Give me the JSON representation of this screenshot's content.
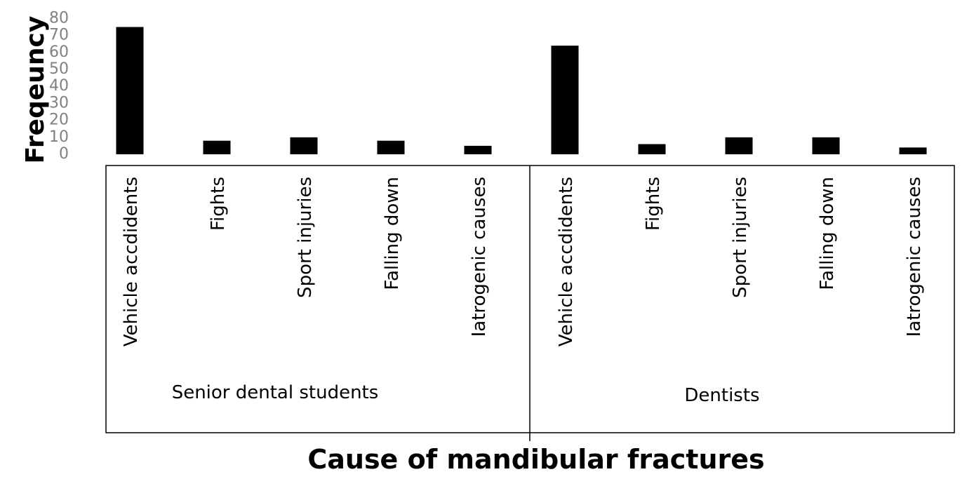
{
  "chart_data": {
    "type": "bar",
    "title": "",
    "xlabel": "Cause of mandibular fractures",
    "ylabel": "Freqeuncy",
    "ylim": [
      0,
      80
    ],
    "yticks": [
      0,
      10,
      20,
      30,
      40,
      50,
      60,
      70,
      80
    ],
    "grid": false,
    "legend": "none",
    "bar_color": "#000000",
    "tick_color": "#808080",
    "groups": [
      {
        "name": "Senior dental students",
        "categories": [
          "Vehicle accdidents",
          "Fights",
          "Sport injuries",
          "Falling down",
          "Iatrogenic causes"
        ],
        "values": [
          75,
          8,
          10,
          8,
          5
        ]
      },
      {
        "name": "Dentists",
        "categories": [
          "Vehicle accdidents",
          "Fights",
          "Sport injuries",
          "Falling down",
          "Iatrogenic causes"
        ],
        "values": [
          64,
          6,
          10,
          10,
          4
        ]
      }
    ]
  }
}
